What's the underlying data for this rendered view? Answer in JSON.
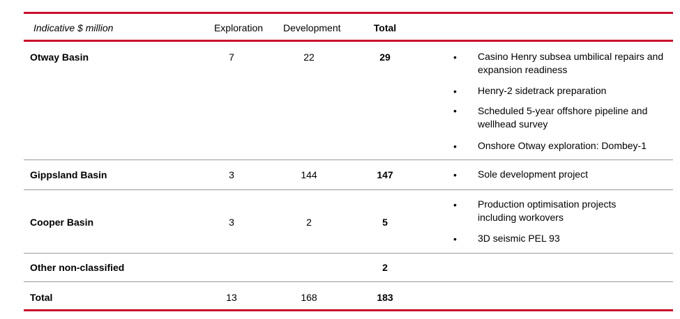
{
  "header": {
    "units": "Indicative $ million",
    "col_exploration": "Exploration",
    "col_development": "Development",
    "col_total": "Total"
  },
  "rows": [
    {
      "name": "Otway Basin",
      "exploration": "7",
      "development": "22",
      "total": "29",
      "notes": [
        "Casino Henry subsea umbilical repairs and expansion readiness",
        "Henry-2 sidetrack preparation",
        "Scheduled 5-year offshore pipeline and wellhead survey",
        "Onshore Otway exploration: Dombey-1"
      ]
    },
    {
      "name": "Gippsland Basin",
      "exploration": "3",
      "development": "144",
      "total": "147",
      "notes": [
        "Sole development project"
      ]
    },
    {
      "name": "Cooper Basin",
      "exploration": "3",
      "development": "2",
      "total": "5",
      "notes": [
        "Production optimisation projects including workovers",
        "3D seismic PEL 93"
      ]
    },
    {
      "name": "Other non-classified",
      "exploration": "",
      "development": "",
      "total": "2",
      "notes": []
    },
    {
      "name": "Total",
      "exploration": "13",
      "development": "168",
      "total": "183",
      "notes": []
    }
  ],
  "bullet_char": "•"
}
